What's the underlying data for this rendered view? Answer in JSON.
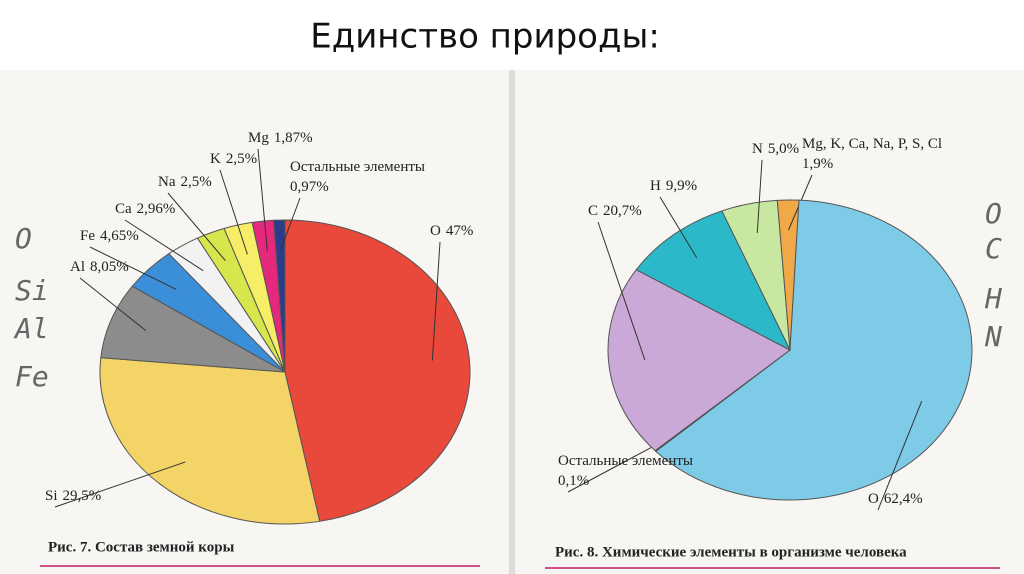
{
  "title": "Единство природы:",
  "chart_data": [
    {
      "type": "pie",
      "caption": "Рис. 7. Состав земной коры",
      "categories": [
        "O",
        "Si",
        "Al",
        "Fe",
        "Ca",
        "Na",
        "K",
        "Mg",
        "Остальные элементы"
      ],
      "values": [
        47,
        29.5,
        8.05,
        4.65,
        2.96,
        2.5,
        2.5,
        1.87,
        0.97
      ],
      "value_labels": [
        "47%",
        "29,5%",
        "8,05%",
        "4,65%",
        "2,96%",
        "2,5%",
        "2,5%",
        "1,87%",
        "0,97%"
      ],
      "colors": [
        "#e9493b",
        "#f4d466",
        "#8c8c8c",
        "#3a8fd8",
        "#f2f2f2",
        "#d6e64c",
        "#f6ee66",
        "#e6287c",
        "#2b3c8c"
      ],
      "annotations": [
        "O",
        "Si",
        "Al",
        "Fe"
      ]
    },
    {
      "type": "pie",
      "caption": "Рис. 8. Химические элементы в организме человека",
      "categories": [
        "N",
        "Mg, K, Ca, Na, P, S, Cl",
        "O",
        "Остальные элементы",
        "C",
        "H"
      ],
      "values": [
        5.0,
        1.9,
        62.4,
        0.1,
        20.7,
        9.9
      ],
      "value_labels": [
        "5,0%",
        "1,9%",
        "62,4%",
        "0,1%",
        "20,7%",
        "9,9%"
      ],
      "colors": [
        "#c8e8a2",
        "#f0a848",
        "#7ecbe8",
        "#ffffff",
        "#caa9d9",
        "#2bb9c9"
      ],
      "annotations": [
        "O",
        "C",
        "H",
        "N"
      ]
    }
  ]
}
